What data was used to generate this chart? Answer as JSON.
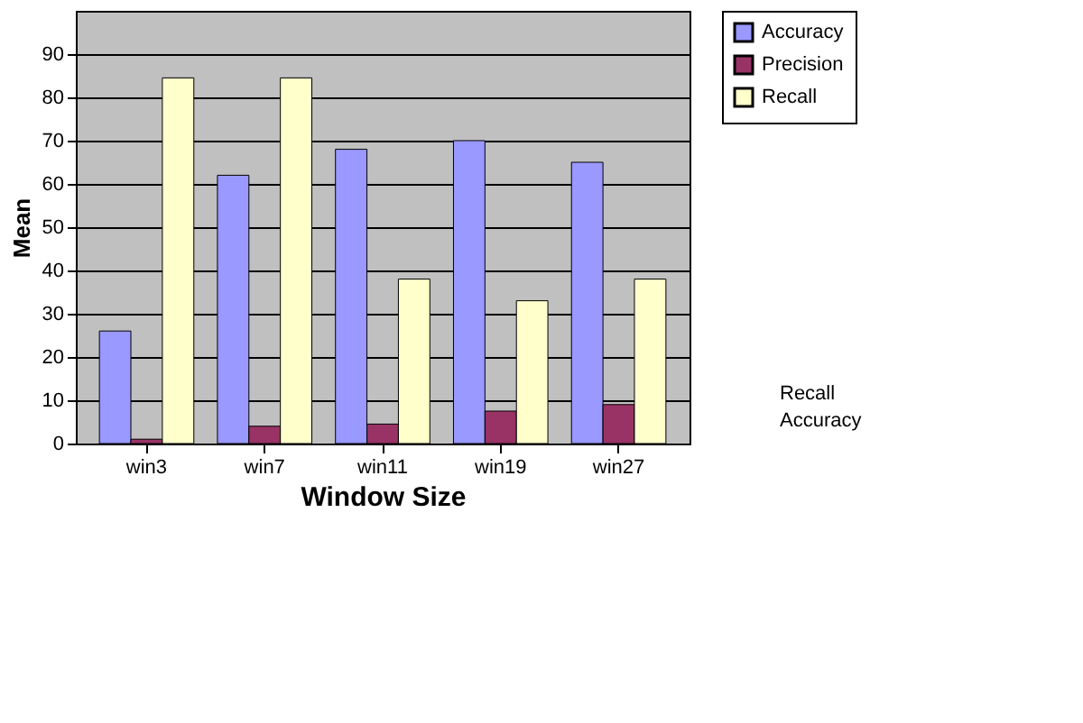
{
  "chart_data": {
    "type": "bar",
    "xlabel": "Window Size",
    "ylabel": "Mean",
    "categories": [
      "win3",
      "win7",
      "win11",
      "win19",
      "win27"
    ],
    "series": [
      {
        "name": "Accuracy",
        "color": "#9999ff",
        "values": [
          26,
          62,
          68,
          70,
          65
        ]
      },
      {
        "name": "Precision",
        "color": "#993366",
        "values": [
          1,
          4,
          4.5,
          7.5,
          9
        ]
      },
      {
        "name": "Recall",
        "color": "#ffffcc",
        "values": [
          84.5,
          84.5,
          38,
          33,
          38
        ]
      }
    ],
    "ylim": [
      0,
      100
    ],
    "yticks": [
      0,
      10,
      20,
      30,
      40,
      50,
      60,
      70,
      80,
      90
    ],
    "grid": "y",
    "legend": "right",
    "annotations": [
      "Recall",
      "Accuracy"
    ]
  }
}
